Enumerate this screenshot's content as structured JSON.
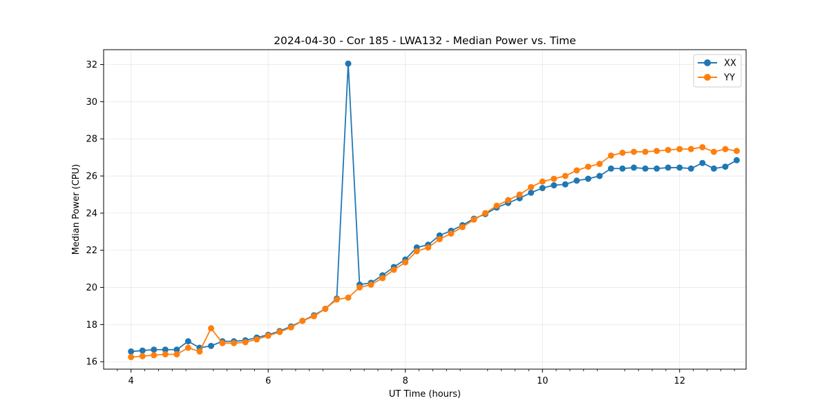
{
  "chart_data": {
    "type": "line",
    "title": "2024-04-30 - Cor 185 - LWA132 - Median Power vs. Time",
    "xlabel": "UT Time (hours)",
    "ylabel": "Median Power (CPU)",
    "xlim": [
      3.6,
      12.97
    ],
    "ylim": [
      15.6,
      32.8
    ],
    "xticks": [
      4,
      6,
      8,
      10,
      12
    ],
    "xtick_labels": [
      "4",
      "6",
      "8",
      "10",
      "12"
    ],
    "xminor_ticks": [
      3.8,
      4.2,
      4.4,
      4.6,
      4.8,
      5.2,
      5.4,
      5.6,
      5.8,
      6.2,
      6.4,
      6.6,
      6.8,
      7.2,
      7.4,
      7.6,
      7.8,
      8.2,
      8.4,
      8.6,
      8.8,
      9.2,
      9.4,
      9.6,
      9.8,
      10.2,
      10.4,
      10.6,
      10.8,
      11.2,
      11.4,
      11.6,
      11.8,
      12.2,
      12.4,
      12.6,
      12.8
    ],
    "yticks": [
      16,
      18,
      20,
      22,
      24,
      26,
      28,
      30,
      32
    ],
    "ytick_labels": [
      "16",
      "18",
      "20",
      "22",
      "24",
      "26",
      "28",
      "30",
      "32"
    ],
    "grid": true,
    "legend_position": "top-right",
    "series": [
      {
        "name": "XX",
        "color": "#1f77b4",
        "x": [
          4.0,
          4.167,
          4.333,
          4.5,
          4.667,
          4.833,
          5.0,
          5.167,
          5.333,
          5.5,
          5.667,
          5.833,
          6.0,
          6.167,
          6.333,
          6.5,
          6.667,
          6.833,
          7.0,
          7.167,
          7.333,
          7.5,
          7.667,
          7.833,
          8.0,
          8.167,
          8.333,
          8.5,
          8.667,
          8.833,
          9.0,
          9.167,
          9.333,
          9.5,
          9.667,
          9.833,
          10.0,
          10.167,
          10.333,
          10.5,
          10.667,
          10.833,
          11.0,
          11.167,
          11.333,
          11.5,
          11.667,
          11.833,
          12.0,
          12.167,
          12.333,
          12.5,
          12.667,
          12.833
        ],
        "y": [
          16.55,
          16.6,
          16.65,
          16.65,
          16.65,
          17.1,
          16.75,
          16.85,
          17.1,
          17.1,
          17.15,
          17.3,
          17.45,
          17.65,
          17.9,
          18.2,
          18.5,
          18.85,
          19.4,
          32.05,
          20.15,
          20.25,
          20.65,
          21.1,
          21.5,
          22.15,
          22.3,
          22.8,
          23.05,
          23.35,
          23.7,
          23.95,
          24.3,
          24.55,
          24.8,
          25.1,
          25.35,
          25.5,
          25.55,
          25.75,
          25.85,
          26.0,
          26.4,
          26.4,
          26.45,
          26.4,
          26.4,
          26.45,
          26.45,
          26.4,
          26.7,
          26.4,
          26.5,
          26.85
        ]
      },
      {
        "name": "YY",
        "color": "#ff7f0e",
        "x": [
          4.0,
          4.167,
          4.333,
          4.5,
          4.667,
          4.833,
          5.0,
          5.167,
          5.333,
          5.5,
          5.667,
          5.833,
          6.0,
          6.167,
          6.333,
          6.5,
          6.667,
          6.833,
          7.0,
          7.167,
          7.333,
          7.5,
          7.667,
          7.833,
          8.0,
          8.167,
          8.333,
          8.5,
          8.667,
          8.833,
          9.0,
          9.167,
          9.333,
          9.5,
          9.667,
          9.833,
          10.0,
          10.167,
          10.333,
          10.5,
          10.667,
          10.833,
          11.0,
          11.167,
          11.333,
          11.5,
          11.667,
          11.833,
          12.0,
          12.167,
          12.333,
          12.5,
          12.667,
          12.833
        ],
        "y": [
          16.25,
          16.3,
          16.35,
          16.4,
          16.4,
          16.75,
          16.55,
          17.8,
          17.0,
          17.0,
          17.05,
          17.2,
          17.4,
          17.6,
          17.85,
          18.2,
          18.45,
          18.85,
          19.35,
          19.45,
          20.0,
          20.15,
          20.5,
          20.95,
          21.35,
          21.95,
          22.15,
          22.6,
          22.9,
          23.25,
          23.65,
          24.0,
          24.4,
          24.7,
          25.0,
          25.4,
          25.7,
          25.85,
          26.0,
          26.3,
          26.5,
          26.65,
          27.1,
          27.25,
          27.3,
          27.3,
          27.35,
          27.4,
          27.45,
          27.45,
          27.55,
          27.3,
          27.45,
          27.35
        ]
      }
    ]
  }
}
